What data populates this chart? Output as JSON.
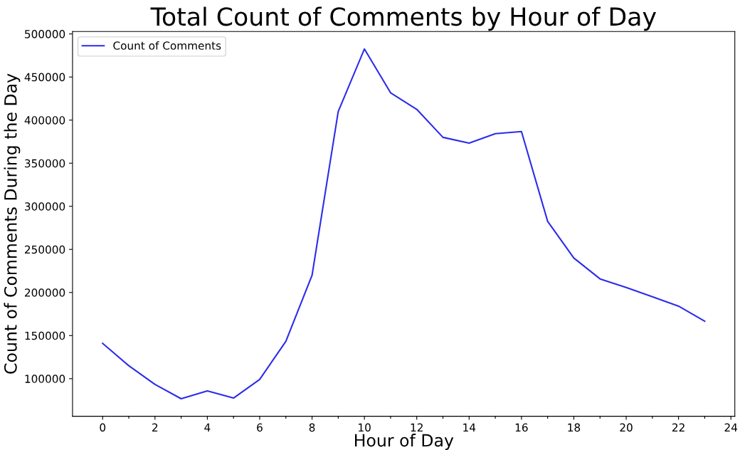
{
  "chart_data": {
    "type": "line",
    "title": "Total Count of Comments by Hour of Day",
    "xlabel": "Hour of Day",
    "ylabel": "Count of Comments During the Day",
    "x": [
      0,
      1,
      2,
      3,
      4,
      5,
      6,
      7,
      8,
      9,
      10,
      11,
      12,
      13,
      14,
      15,
      16,
      17,
      18,
      19,
      20,
      21,
      22,
      23
    ],
    "series": [
      {
        "name": "Count of Comments",
        "color": "#2b2bec",
        "values": [
          141000,
          115000,
          93300,
          76700,
          85800,
          77500,
          99200,
          143300,
          220000,
          410000,
          482500,
          431700,
          412500,
          380000,
          373300,
          384200,
          386700,
          282500,
          240000,
          215800,
          205800,
          195000,
          184200,
          166700
        ]
      }
    ],
    "xlim": [
      -1.15,
      24.15
    ],
    "ylim": [
      56400,
      502800
    ],
    "xticks": [
      0,
      {
        "value": 1,
        "label": null
      },
      2,
      {
        "value": 3,
        "label": null
      },
      4,
      {
        "value": 5,
        "label": null
      },
      6,
      {
        "value": 7,
        "label": null
      },
      8,
      {
        "value": 9,
        "label": null
      },
      10,
      {
        "value": 11,
        "label": null
      },
      12,
      {
        "value": 13,
        "label": null
      },
      14,
      {
        "value": 15,
        "label": null
      },
      16,
      {
        "value": 17,
        "label": null
      },
      18,
      {
        "value": 19,
        "label": null
      },
      20,
      {
        "value": 21,
        "label": null
      },
      22,
      {
        "value": 23,
        "label": null
      },
      24
    ],
    "yticks": [
      100000,
      150000,
      200000,
      250000,
      300000,
      350000,
      400000,
      450000,
      500000
    ],
    "legend": "top left",
    "grid": false
  }
}
